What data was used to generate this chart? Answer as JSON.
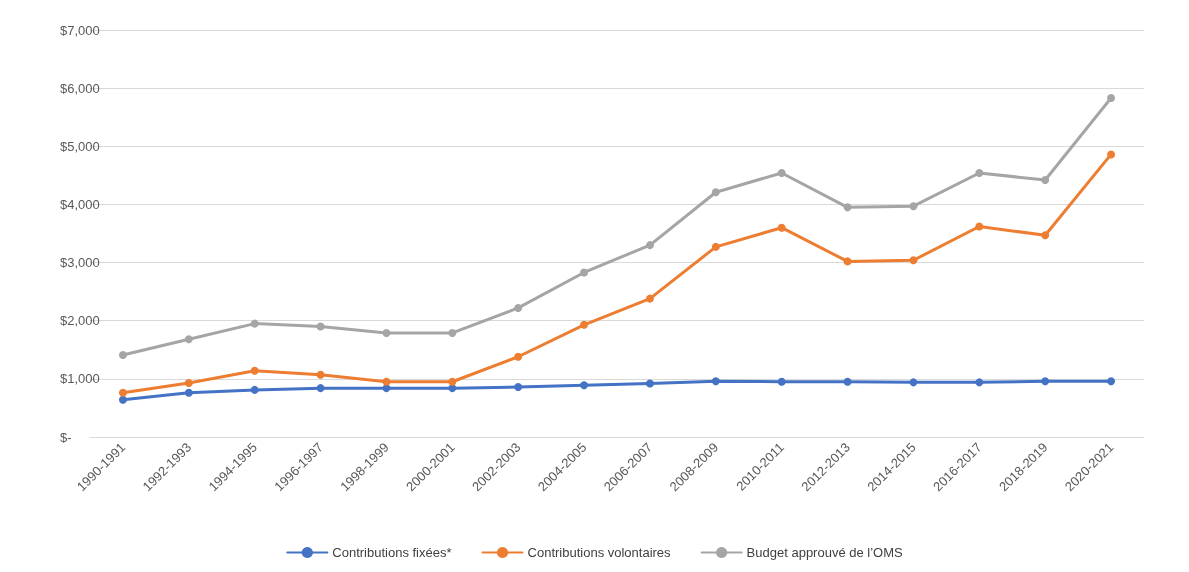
{
  "chart_data": {
    "type": "line",
    "categories": [
      "1990-1991",
      "1992-1993",
      "1994-1995",
      "1996-1997",
      "1998-1999",
      "2000-2001",
      "2002-2003",
      "2004-2005",
      "2006-2007",
      "2008-2009",
      "2010-2011",
      "2012-2013",
      "2014-2015",
      "2016-2017",
      "2018-2019",
      "2020-2021"
    ],
    "series": [
      {
        "name": "Contributions fixées*",
        "color": "#4472c4",
        "values": [
          640,
          760,
          810,
          840,
          840,
          840,
          860,
          890,
          920,
          960,
          950,
          950,
          940,
          940,
          960,
          960
        ]
      },
      {
        "name": "Contributions volontaires",
        "color": "#ed7d31",
        "values": [
          760,
          930,
          1140,
          1070,
          950,
          950,
          1380,
          1930,
          2380,
          3270,
          3600,
          3020,
          3040,
          3620,
          3470,
          4860
        ]
      },
      {
        "name": "Budget approuvé de l’OMS",
        "color": "#a5a5a5",
        "values": [
          1410,
          1680,
          1950,
          1900,
          1790,
          1790,
          2220,
          2830,
          3300,
          4210,
          4540,
          3950,
          3970,
          4540,
          4420,
          5830
        ]
      }
    ],
    "ylim": [
      0,
      7000
    ],
    "yticks": [
      {
        "value": 0,
        "label": "$-"
      },
      {
        "value": 1000,
        "label": "$1,000"
      },
      {
        "value": 2000,
        "label": "$2,000"
      },
      {
        "value": 3000,
        "label": "$3,000"
      },
      {
        "value": 4000,
        "label": "$4,000"
      },
      {
        "value": 5000,
        "label": "$5,000"
      },
      {
        "value": 6000,
        "label": "$6,000"
      },
      {
        "value": 7000,
        "label": "$7,000"
      }
    ],
    "grid": "y",
    "legend": "bottom",
    "marker": "circle",
    "line_style": "solid"
  }
}
